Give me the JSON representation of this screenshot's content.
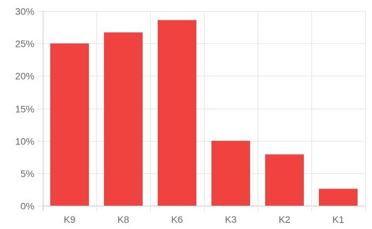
{
  "chart_data": {
    "type": "bar",
    "categories": [
      "K9",
      "K8",
      "K6",
      "K3",
      "K2",
      "K1"
    ],
    "values": [
      25.0,
      26.7,
      28.6,
      10.0,
      7.9,
      2.6
    ],
    "ylim": [
      0,
      30
    ],
    "yticks": [
      0,
      5,
      10,
      15,
      20,
      25,
      30
    ],
    "ytick_suffix": "%",
    "grid": true,
    "legend": "none",
    "colors": {
      "bar": "#f0433f",
      "grid": "#e6e6e6",
      "axis": "#c8c8c8",
      "text": "#666666"
    }
  }
}
